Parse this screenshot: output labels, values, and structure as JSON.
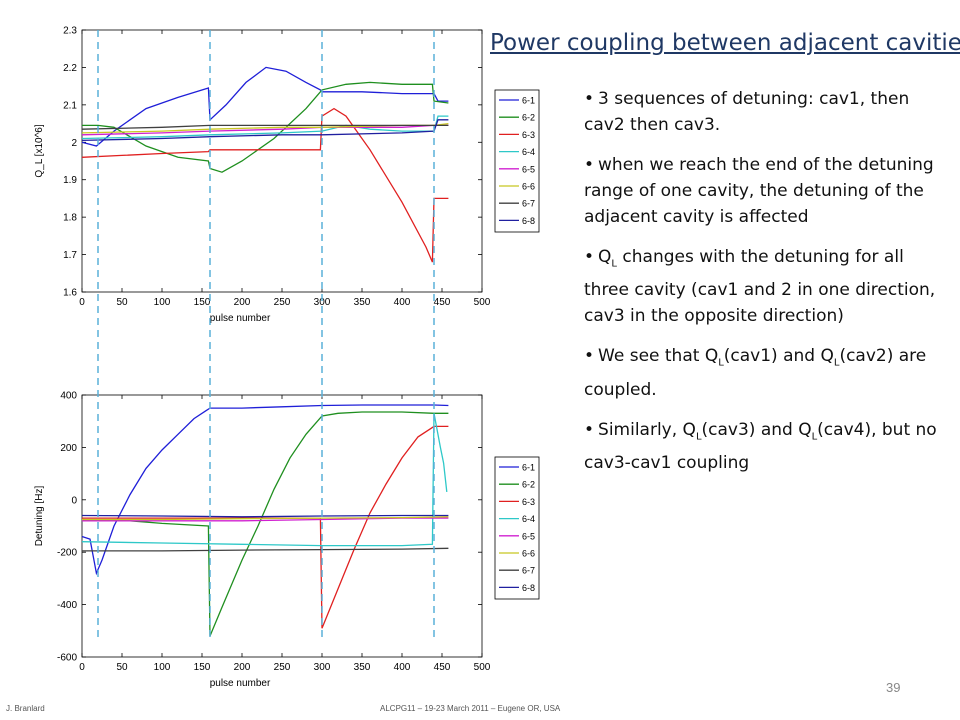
{
  "slide": {
    "title": "Power coupling between adjacent cavities",
    "bullets": [
      {
        "text": "3 sequences of detuning:  cav1, then cav2 then cav3."
      },
      {
        "text": "when we reach the end of the detuning range of one cavity, the detuning of the adjacent cavity is affected"
      },
      {
        "pre": "Q",
        "sub": "L",
        "post": " changes with the detuning for all three cavity (cav1 and 2 in one direction, cav3 in the opposite direction)"
      },
      {
        "a": "We see that Q",
        "s1": "L",
        "b": "(cav1) and Q",
        "s2": "L",
        "c": "(cav2) are coupled."
      },
      {
        "a": "Similarly, Q",
        "s1": "L",
        "b": "(cav3) and Q",
        "s2": "L",
        "c": "(cav4), but no cav3-cav1 coupling"
      }
    ],
    "page_number": "39",
    "footer_left": "J. Branlard",
    "footer_center": "ALCPG11 – 19-23 March 2011 – Eugene OR, USA"
  },
  "colors": {
    "6-1": "#1f1fd8",
    "6-2": "#1f8f1f",
    "6-3": "#e02020",
    "6-4": "#2ec8c8",
    "6-5": "#d020d0",
    "6-6": "#c8c820",
    "6-7": "#404040",
    "6-8": "#2020a0",
    "vline": "#5ab0d8"
  },
  "chart_data": [
    {
      "type": "line",
      "xlabel": "pulse number",
      "ylabel": "Q_L  [x10^6]",
      "xlim": [
        0,
        500
      ],
      "ylim": [
        1.6,
        2.3
      ],
      "xticks": [
        "0",
        "50",
        "100",
        "150",
        "200",
        "250",
        "300",
        "350",
        "400",
        "450",
        "500"
      ],
      "yticks": [
        "1.6",
        "1.7",
        "1.8",
        "1.9",
        "2",
        "2.1",
        "2.2",
        "2.3"
      ],
      "vlines": [
        20,
        160,
        300,
        440
      ],
      "legend": [
        "6-1",
        "6-2",
        "6-3",
        "6-4",
        "6-5",
        "6-6",
        "6-7",
        "6-8"
      ],
      "series": [
        {
          "name": "6-1",
          "points": [
            [
              0,
              2.0
            ],
            [
              18,
              1.99
            ],
            [
              40,
              2.03
            ],
            [
              80,
              2.09
            ],
            [
              120,
              2.12
            ],
            [
              158,
              2.145
            ],
            [
              160,
              2.06
            ],
            [
              180,
              2.1
            ],
            [
              205,
              2.16
            ],
            [
              230,
              2.2
            ],
            [
              255,
              2.19
            ],
            [
              280,
              2.16
            ],
            [
              298,
              2.14
            ],
            [
              300,
              2.135
            ],
            [
              350,
              2.135
            ],
            [
              400,
              2.13
            ],
            [
              440,
              2.13
            ],
            [
              445,
              2.11
            ],
            [
              458,
              2.11
            ]
          ]
        },
        {
          "name": "6-2",
          "points": [
            [
              0,
              2.045
            ],
            [
              20,
              2.045
            ],
            [
              40,
              2.04
            ],
            [
              80,
              1.99
            ],
            [
              120,
              1.96
            ],
            [
              158,
              1.95
            ],
            [
              160,
              1.93
            ],
            [
              175,
              1.92
            ],
            [
              200,
              1.95
            ],
            [
              240,
              2.01
            ],
            [
              280,
              2.09
            ],
            [
              300,
              2.14
            ],
            [
              330,
              2.155
            ],
            [
              360,
              2.16
            ],
            [
              400,
              2.155
            ],
            [
              438,
              2.155
            ],
            [
              440,
              2.11
            ],
            [
              458,
              2.105
            ]
          ]
        },
        {
          "name": "6-3",
          "points": [
            [
              0,
              1.96
            ],
            [
              50,
              1.965
            ],
            [
              100,
              1.97
            ],
            [
              158,
              1.975
            ],
            [
              160,
              1.98
            ],
            [
              250,
              1.98
            ],
            [
              298,
              1.98
            ],
            [
              300,
              2.07
            ],
            [
              315,
              2.09
            ],
            [
              330,
              2.07
            ],
            [
              360,
              1.98
            ],
            [
              400,
              1.84
            ],
            [
              430,
              1.72
            ],
            [
              438,
              1.68
            ],
            [
              440,
              1.85
            ],
            [
              458,
              1.85
            ]
          ]
        },
        {
          "name": "6-4",
          "points": [
            [
              0,
              2.01
            ],
            [
              100,
              2.015
            ],
            [
              160,
              2.02
            ],
            [
              250,
              2.025
            ],
            [
              300,
              2.03
            ],
            [
              330,
              2.045
            ],
            [
              360,
              2.035
            ],
            [
              400,
              2.03
            ],
            [
              440,
              2.03
            ],
            [
              445,
              2.07
            ],
            [
              458,
              2.07
            ]
          ]
        },
        {
          "name": "6-5",
          "points": [
            [
              0,
              2.02
            ],
            [
              100,
              2.025
            ],
            [
              160,
              2.03
            ],
            [
              250,
              2.035
            ],
            [
              300,
              2.04
            ],
            [
              400,
              2.04
            ],
            [
              440,
              2.045
            ],
            [
              458,
              2.045
            ]
          ]
        },
        {
          "name": "6-6",
          "points": [
            [
              0,
              2.025
            ],
            [
              100,
              2.03
            ],
            [
              160,
              2.035
            ],
            [
              250,
              2.04
            ],
            [
              300,
              2.04
            ],
            [
              400,
              2.045
            ],
            [
              440,
              2.045
            ],
            [
              458,
              2.05
            ]
          ]
        },
        {
          "name": "6-7",
          "points": [
            [
              0,
              2.035
            ],
            [
              100,
              2.04
            ],
            [
              160,
              2.045
            ],
            [
              250,
              2.045
            ],
            [
              300,
              2.045
            ],
            [
              400,
              2.045
            ],
            [
              440,
              2.045
            ],
            [
              458,
              2.045
            ]
          ]
        },
        {
          "name": "6-8",
          "points": [
            [
              0,
              2.005
            ],
            [
              100,
              2.01
            ],
            [
              160,
              2.015
            ],
            [
              250,
              2.02
            ],
            [
              300,
              2.02
            ],
            [
              400,
              2.025
            ],
            [
              440,
              2.03
            ],
            [
              445,
              2.06
            ],
            [
              458,
              2.06
            ]
          ]
        }
      ]
    },
    {
      "type": "line",
      "xlabel": "pulse number",
      "ylabel": "Detuning   [Hz]",
      "xlim": [
        0,
        500
      ],
      "ylim": [
        -600,
        400
      ],
      "xticks": [
        "0",
        "50",
        "100",
        "150",
        "200",
        "250",
        "300",
        "350",
        "400",
        "450",
        "500"
      ],
      "yticks": [
        "-600",
        "-400",
        "-200",
        "0",
        "200",
        "400"
      ],
      "vlines": [
        20,
        160,
        300,
        440
      ],
      "legend": [
        "6-1",
        "6-2",
        "6-3",
        "6-4",
        "6-5",
        "6-6",
        "6-7",
        "6-8"
      ],
      "series": [
        {
          "name": "6-1",
          "points": [
            [
              0,
              -140
            ],
            [
              10,
              -150
            ],
            [
              18,
              -280
            ],
            [
              25,
              -230
            ],
            [
              40,
              -100
            ],
            [
              60,
              20
            ],
            [
              80,
              120
            ],
            [
              100,
              190
            ],
            [
              120,
              250
            ],
            [
              140,
              310
            ],
            [
              155,
              340
            ],
            [
              160,
              350
            ],
            [
              200,
              350
            ],
            [
              250,
              355
            ],
            [
              300,
              360
            ],
            [
              350,
              362
            ],
            [
              400,
              362
            ],
            [
              440,
              362
            ],
            [
              458,
              360
            ]
          ]
        },
        {
          "name": "6-2",
          "points": [
            [
              0,
              -80
            ],
            [
              60,
              -80
            ],
            [
              100,
              -90
            ],
            [
              158,
              -100
            ],
            [
              160,
              -520
            ],
            [
              175,
              -410
            ],
            [
              200,
              -230
            ],
            [
              220,
              -100
            ],
            [
              240,
              40
            ],
            [
              260,
              160
            ],
            [
              280,
              250
            ],
            [
              300,
              320
            ],
            [
              320,
              330
            ],
            [
              350,
              335
            ],
            [
              400,
              335
            ],
            [
              440,
              330
            ],
            [
              458,
              330
            ]
          ]
        },
        {
          "name": "6-3",
          "points": [
            [
              0,
              -70
            ],
            [
              100,
              -70
            ],
            [
              200,
              -70
            ],
            [
              298,
              -70
            ],
            [
              300,
              -490
            ],
            [
              320,
              -340
            ],
            [
              340,
              -190
            ],
            [
              360,
              -50
            ],
            [
              380,
              60
            ],
            [
              400,
              160
            ],
            [
              420,
              240
            ],
            [
              440,
              280
            ],
            [
              458,
              280
            ]
          ]
        },
        {
          "name": "6-4",
          "points": [
            [
              0,
              -160
            ],
            [
              100,
              -165
            ],
            [
              200,
              -170
            ],
            [
              300,
              -175
            ],
            [
              400,
              -175
            ],
            [
              438,
              -170
            ],
            [
              440,
              330
            ],
            [
              448,
              200
            ],
            [
              452,
              140
            ],
            [
              456,
              30
            ]
          ]
        },
        {
          "name": "6-5",
          "points": [
            [
              0,
              -80
            ],
            [
              100,
              -80
            ],
            [
              200,
              -80
            ],
            [
              300,
              -75
            ],
            [
              400,
              -70
            ],
            [
              458,
              -70
            ]
          ]
        },
        {
          "name": "6-6",
          "points": [
            [
              0,
              -75
            ],
            [
              100,
              -75
            ],
            [
              200,
              -72
            ],
            [
              300,
              -70
            ],
            [
              400,
              -68
            ],
            [
              458,
              -65
            ]
          ]
        },
        {
          "name": "6-7",
          "points": [
            [
              0,
              -195
            ],
            [
              100,
              -195
            ],
            [
              200,
              -192
            ],
            [
              300,
              -190
            ],
            [
              400,
              -188
            ],
            [
              458,
              -185
            ]
          ]
        },
        {
          "name": "6-8",
          "points": [
            [
              0,
              -60
            ],
            [
              100,
              -62
            ],
            [
              200,
              -65
            ],
            [
              300,
              -62
            ],
            [
              400,
              -60
            ],
            [
              458,
              -60
            ]
          ]
        }
      ]
    }
  ]
}
